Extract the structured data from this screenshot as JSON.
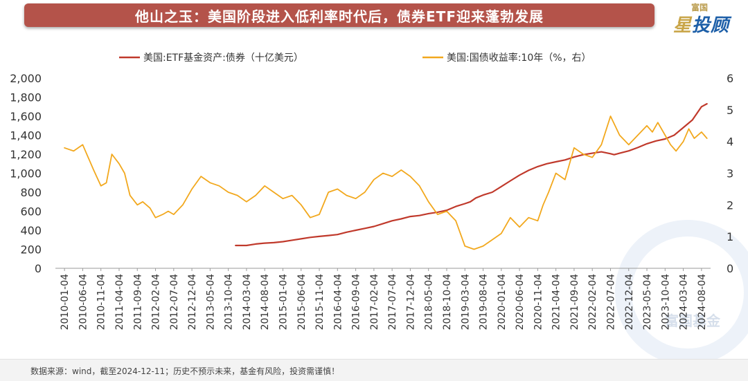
{
  "header": {
    "title": "他山之玉：美国阶段进入低利率时代后，债券ETF迎来蓬勃发展"
  },
  "logo": {
    "top_text": "富国",
    "main_text": "星投顾",
    "main_first": "星",
    "main_rest": "投顾"
  },
  "footer": {
    "text": "数据来源：wind，截至2024-12-11；历史不预示未来，基金有风险，投资需谨慎！"
  },
  "watermark": {
    "text": "富国基金"
  },
  "colors": {
    "title_bg": "#b4534a",
    "etf_line": "#c0392b",
    "yield_line": "#f2a81d",
    "axis": "#999999"
  },
  "chart_data": {
    "type": "line",
    "title": "",
    "y_left": {
      "ticks": [
        "0",
        "200",
        "400",
        "600",
        "800",
        "1,000",
        "1,200",
        "1,400",
        "1,600",
        "1,800",
        "2,000"
      ],
      "ylim": [
        0,
        2000
      ]
    },
    "y_right": {
      "ticks": [
        "0",
        "1",
        "2",
        "3",
        "4",
        "5",
        "6"
      ],
      "ylim": [
        0,
        6
      ]
    },
    "x_labels": [
      "2010-01-04",
      "2010-06-04",
      "2010-11-04",
      "2011-04-04",
      "2011-09-04",
      "2012-02-04",
      "2012-07-04",
      "2012-12-04",
      "2013-05-04",
      "2013-10-04",
      "2014-03-04",
      "2014-08-04",
      "2015-01-04",
      "2015-06-04",
      "2015-11-04",
      "2016-04-04",
      "2016-09-04",
      "2017-02-04",
      "2017-07-04",
      "2017-12-04",
      "2018-05-04",
      "2018-10-04",
      "2019-03-04",
      "2019-08-04",
      "2020-01-04",
      "2020-06-04",
      "2020-11-04",
      "2021-04-04",
      "2021-09-04",
      "2022-02-04",
      "2022-07-04",
      "2022-12-04",
      "2023-05-04",
      "2023-10-04",
      "2024-03-04",
      "2024-08-04"
    ],
    "series": [
      {
        "name": "美国:ETF基金资产:债券（十亿美元）",
        "axis": "left",
        "x": [
          9.4,
          10,
          10.5,
          11,
          11.5,
          12,
          12.5,
          13,
          13.5,
          14,
          14.5,
          15,
          15.5,
          16,
          16.5,
          17,
          17.5,
          18,
          18.5,
          19,
          19.5,
          20,
          20.5,
          21,
          21.5,
          22,
          22.3,
          22.6,
          23,
          23.5,
          24,
          24.5,
          25,
          25.5,
          26,
          26.5,
          27,
          27.5,
          28,
          28.5,
          29,
          29.5,
          30,
          30.2,
          30.5,
          31,
          31.5,
          32,
          32.5,
          33,
          33.5,
          34,
          34.5,
          35,
          35.3
        ],
        "values": [
          240,
          240,
          255,
          265,
          270,
          280,
          295,
          310,
          325,
          335,
          345,
          355,
          380,
          400,
          420,
          440,
          470,
          500,
          520,
          545,
          555,
          575,
          590,
          610,
          650,
          680,
          700,
          740,
          770,
          800,
          860,
          920,
          980,
          1030,
          1070,
          1100,
          1120,
          1140,
          1170,
          1195,
          1210,
          1225,
          1205,
          1195,
          1210,
          1235,
          1270,
          1310,
          1340,
          1360,
          1400,
          1480,
          1560,
          1700,
          1730
        ]
      },
      {
        "name": "美国:国债收益率:10年（%，右）",
        "axis": "right",
        "x": [
          0,
          0.5,
          1,
          1.3,
          1.6,
          2,
          2.3,
          2.6,
          3,
          3.3,
          3.6,
          4,
          4.3,
          4.7,
          5,
          5.4,
          5.7,
          6,
          6.5,
          7,
          7.5,
          8,
          8.5,
          9,
          9.5,
          10,
          10.5,
          11,
          11.5,
          12,
          12.5,
          13,
          13.5,
          14,
          14.5,
          15,
          15.5,
          16,
          16.5,
          17,
          17.5,
          18,
          18.5,
          19,
          19.5,
          20,
          20.5,
          21,
          21.5,
          22,
          22.5,
          23,
          23.5,
          24,
          24.5,
          25,
          25.5,
          26,
          26.3,
          26.6,
          27,
          27.5,
          28,
          28.5,
          29,
          29.5,
          30,
          30.5,
          31,
          31.5,
          32,
          32.3,
          32.6,
          33,
          33.3,
          33.6,
          34,
          34.3,
          34.6,
          35,
          35.3
        ],
        "values": [
          3.8,
          3.7,
          3.9,
          3.5,
          3.1,
          2.6,
          2.7,
          3.6,
          3.3,
          3.0,
          2.3,
          2.0,
          2.1,
          1.9,
          1.6,
          1.7,
          1.8,
          1.7,
          2.0,
          2.5,
          2.9,
          2.7,
          2.6,
          2.4,
          2.3,
          2.1,
          2.3,
          2.6,
          2.4,
          2.2,
          2.3,
          2.0,
          1.6,
          1.7,
          2.4,
          2.5,
          2.3,
          2.2,
          2.4,
          2.8,
          3.0,
          2.9,
          3.1,
          2.9,
          2.6,
          2.1,
          1.7,
          1.8,
          1.5,
          0.7,
          0.6,
          0.7,
          0.9,
          1.1,
          1.6,
          1.3,
          1.6,
          1.5,
          2.0,
          2.4,
          3.0,
          2.8,
          3.8,
          3.6,
          3.5,
          3.9,
          4.8,
          4.2,
          3.9,
          4.2,
          4.5,
          4.3,
          4.6,
          4.2,
          3.9,
          3.7,
          4.0,
          4.4,
          4.1,
          4.3,
          4.1
        ]
      }
    ]
  }
}
